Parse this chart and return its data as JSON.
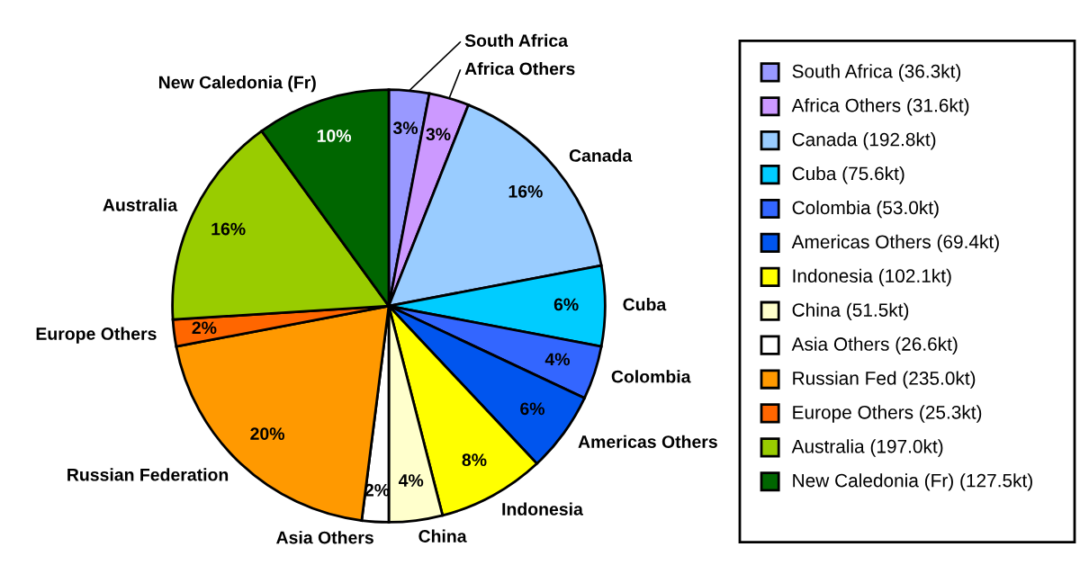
{
  "chart_data": {
    "type": "pie",
    "categories": [
      "South Africa",
      "Africa Others",
      "Canada",
      "Cuba",
      "Colombia",
      "Americas Others",
      "Indonesia",
      "China",
      "Asia Others",
      "Russian Federation",
      "Europe Others",
      "Australia",
      "New Caledonia (Fr)"
    ],
    "values": [
      3,
      3,
      16,
      6,
      4,
      6,
      8,
      4,
      2,
      20,
      2,
      16,
      10
    ],
    "colors": [
      "#9999ff",
      "#cc99ff",
      "#99ccff",
      "#00ccff",
      "#3366ff",
      "#0055ee",
      "#ffff00",
      "#ffffcc",
      "#ffffff",
      "#ff9900",
      "#ff6600",
      "#99cc00",
      "#006600"
    ],
    "value_labels": [
      "3%",
      "3%",
      "16%",
      "6%",
      "4%",
      "6%",
      "8%",
      "4%",
      "2%",
      "20%",
      "2%",
      "16%",
      "10%"
    ],
    "annotations": [
      "South Africa (36.3kt)",
      "Africa Others (31.6kt)",
      "Canada (192.8kt)",
      "Cuba (75.6kt)",
      "Colombia (53.0kt)",
      "Americas Others (69.4kt)",
      "Indonesia (102.1kt)",
      "China (51.5kt)",
      "Asia Others (26.6kt)",
      "Russian Fed (235.0kt)",
      "Europe Others (25.3kt)",
      "Australia (197.0kt)",
      "New Caledonia (Fr) (127.5kt)"
    ]
  }
}
